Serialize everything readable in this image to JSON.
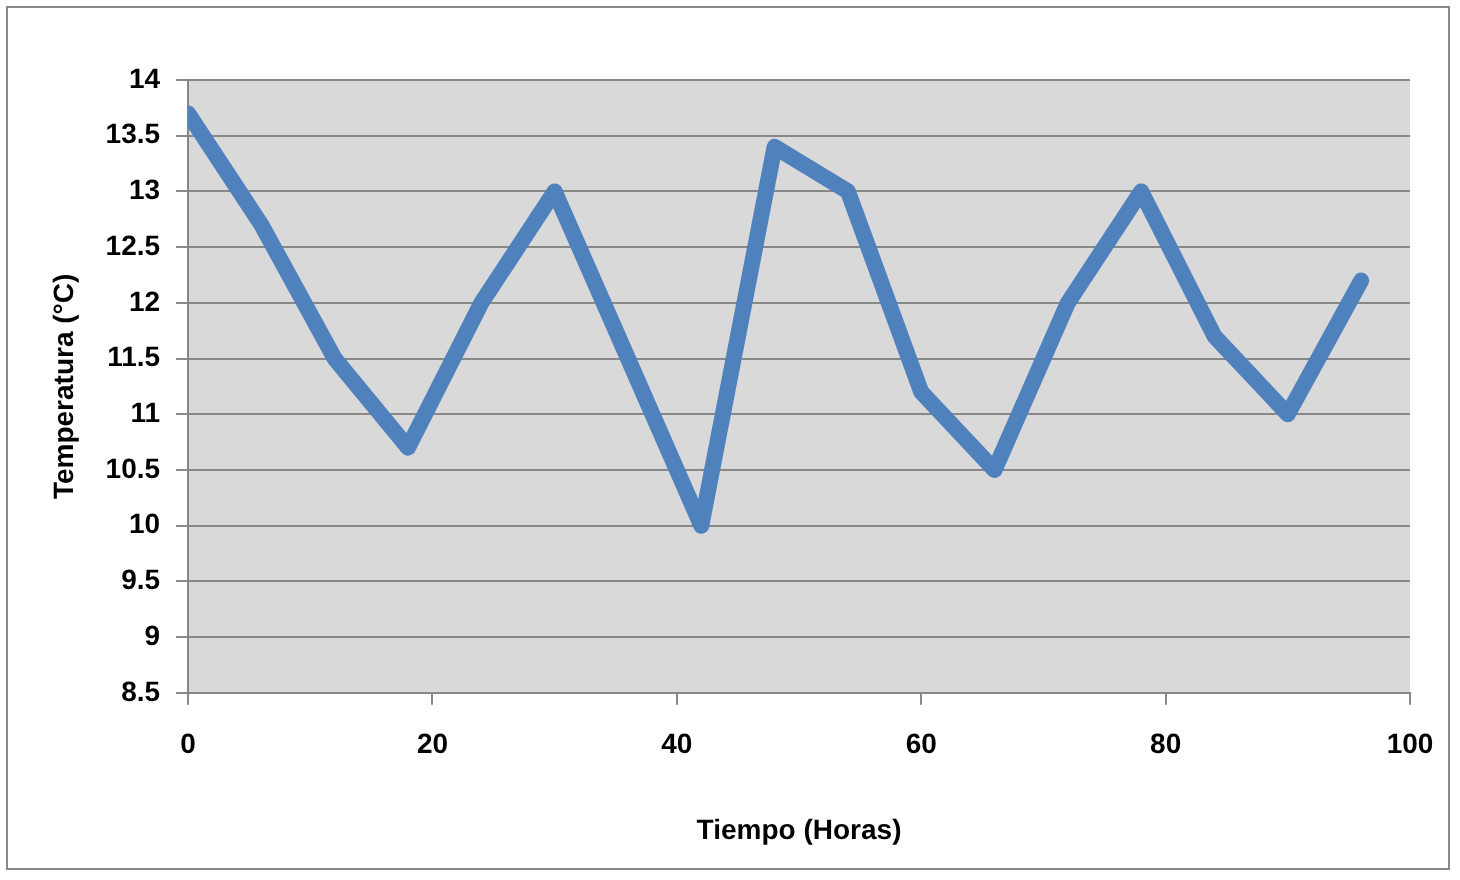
{
  "chart_data": {
    "type": "line",
    "xlabel": "Tiempo (Horas)",
    "ylabel": "Temperatura (°C)",
    "x": [
      0,
      6,
      12,
      18,
      24,
      30,
      36,
      42,
      48,
      54,
      60,
      66,
      72,
      78,
      84,
      90,
      96
    ],
    "series": [
      {
        "color": "#4f81bd",
        "values": [
          13.7,
          12.7,
          11.5,
          10.7,
          12.0,
          13.0,
          11.5,
          10.0,
          13.4,
          13.0,
          11.2,
          10.5,
          12.0,
          13.0,
          11.7,
          11.0,
          12.2
        ]
      }
    ],
    "xlim": [
      0,
      100
    ],
    "xticks": [
      0,
      20,
      40,
      60,
      80,
      100
    ],
    "ylim": [
      8.5,
      14
    ],
    "yticks": [
      8.5,
      9,
      9.5,
      10,
      10.5,
      11,
      11.5,
      12,
      12.5,
      13,
      13.5,
      14
    ],
    "grid": "y",
    "legend": false,
    "marker": "none",
    "line_style": "solid"
  }
}
